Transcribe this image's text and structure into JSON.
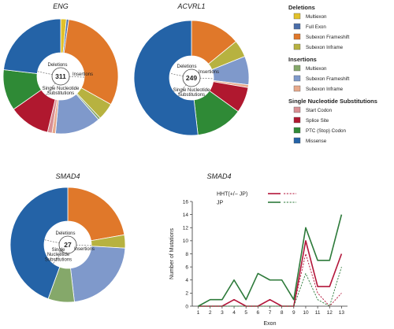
{
  "colors": {
    "multiexon_del": "#e2c12a",
    "full_exon": "#4a6ea9",
    "subexon_frameshift_del": "#e0782a",
    "subexon_inframe_del": "#b7b240",
    "multiexon_ins": "#85a86a",
    "subexon_frameshift_ins": "#7f99cb",
    "subexon_inframe_ins": "#e7a98b",
    "start_codon": "#d98f93",
    "splice_site": "#b0182f",
    "ptc": "#2f8a36",
    "missense": "#2463a7",
    "hht_line": "#b3163a",
    "jp_line": "#2d7a3a"
  },
  "legend": {
    "groups": [
      {
        "header": "Deletions",
        "items": [
          {
            "label": "Multiexon",
            "color_key": "multiexon_del"
          },
          {
            "label": "Full Exon",
            "color_key": "full_exon"
          },
          {
            "label": "Subexon Frameshift",
            "color_key": "subexon_frameshift_del"
          },
          {
            "label": "Subexon Inframe",
            "color_key": "subexon_inframe_del"
          }
        ]
      },
      {
        "header": "Insertions",
        "items": [
          {
            "label": "Multiexon",
            "color_key": "multiexon_ins"
          },
          {
            "label": "Subexon Frameshift",
            "color_key": "subexon_frameshift_ins"
          },
          {
            "label": "Subexon Inframe",
            "color_key": "subexon_inframe_ins"
          }
        ]
      },
      {
        "header": "Single Nucleotide Substitutions",
        "items": [
          {
            "label": "Start Codon",
            "color_key": "start_codon"
          },
          {
            "label": "Splice Site",
            "color_key": "splice_site"
          },
          {
            "label": "PTC (Stop) Codon",
            "color_key": "ptc"
          },
          {
            "label": "Missense",
            "color_key": "missense"
          }
        ]
      }
    ]
  },
  "chart_data": [
    {
      "type": "pie",
      "style": "donut",
      "title": "ENG",
      "total": "311",
      "inner_labels": {
        "deletions": "Deletions",
        "insertions": "Insertions",
        "substitutions": "Single Nucleotide Substitutions"
      },
      "slices": [
        {
          "category": "Multiexon (Deletion)",
          "value": 5,
          "color_key": "multiexon_del"
        },
        {
          "category": "Full Exon",
          "value": 2,
          "color_key": "full_exon"
        },
        {
          "category": "Subexon Frameshift (Deletion)",
          "value": 96,
          "color_key": "subexon_frameshift_del"
        },
        {
          "category": "Subexon Inframe (Deletion)",
          "value": 15,
          "color_key": "subexon_inframe_del"
        },
        {
          "category": "Multiexon (Insertion)",
          "value": 2,
          "color_key": "multiexon_ins"
        },
        {
          "category": "Subexon Frameshift (Insertion)",
          "value": 40,
          "color_key": "subexon_frameshift_ins"
        },
        {
          "category": "Subexon Inframe (Insertion)",
          "value": 3,
          "color_key": "subexon_inframe_ins"
        },
        {
          "category": "Start Codon",
          "value": 4,
          "color_key": "start_codon"
        },
        {
          "category": "Splice Site",
          "value": 36,
          "color_key": "splice_site"
        },
        {
          "category": "PTC (Stop) Codon",
          "value": 36,
          "color_key": "ptc"
        },
        {
          "category": "Missense",
          "value": 72,
          "color_key": "missense"
        }
      ]
    },
    {
      "type": "pie",
      "style": "donut",
      "title": "ACVRL1",
      "total": "249",
      "inner_labels": {
        "deletions": "Deletions",
        "insertions": "Insertions",
        "substitutions": "Single Nucleotide Substitutions"
      },
      "slices": [
        {
          "category": "Subexon Frameshift (Deletion)",
          "value": 35,
          "color_key": "subexon_frameshift_del"
        },
        {
          "category": "Subexon Inframe (Deletion)",
          "value": 12,
          "color_key": "subexon_inframe_del"
        },
        {
          "category": "Subexon Frameshift (Insertion)",
          "value": 20,
          "color_key": "subexon_frameshift_ins"
        },
        {
          "category": "Subexon Inframe (Insertion)",
          "value": 2,
          "color_key": "subexon_inframe_ins"
        },
        {
          "category": "Splice Site",
          "value": 18,
          "color_key": "splice_site"
        },
        {
          "category": "PTC (Stop) Codon",
          "value": 33,
          "color_key": "ptc"
        },
        {
          "category": "Missense",
          "value": 129,
          "color_key": "missense"
        }
      ]
    },
    {
      "type": "pie",
      "style": "donut",
      "title": "SMAD4",
      "total": "27",
      "inner_labels": {
        "deletions": "Deletions",
        "insertions": "Insertions",
        "substitutions": "Single Nucleotide Substitutions"
      },
      "slices": [
        {
          "category": "Subexon Frameshift (Deletion)",
          "value": 6,
          "color_key": "subexon_frameshift_del"
        },
        {
          "category": "Subexon Inframe (Deletion)",
          "value": 1,
          "color_key": "subexon_inframe_del"
        },
        {
          "category": "Subexon Frameshift (Insertion)",
          "value": 6,
          "color_key": "subexon_frameshift_ins"
        },
        {
          "category": "Multiexon (Insertion)",
          "value": 2,
          "color_key": "multiexon_ins"
        },
        {
          "category": "Missense",
          "value": 12,
          "color_key": "missense"
        }
      ]
    },
    {
      "type": "line",
      "title": "SMAD4",
      "xlabel": "Exon",
      "ylabel": "Number of Mutations",
      "x": [
        1,
        2,
        3,
        4,
        5,
        6,
        7,
        8,
        9,
        10,
        11,
        12,
        13
      ],
      "xlim": [
        0.5,
        13.5
      ],
      "ylim": [
        0,
        16
      ],
      "yticks": [
        0,
        2,
        4,
        6,
        8,
        10,
        12,
        14,
        16
      ],
      "grid": false,
      "legend_position": "top-left",
      "series": [
        {
          "name": "HHT(+/− JP)",
          "color_key": "hht_line",
          "dash": false,
          "values": [
            0,
            0,
            0,
            1,
            0,
            0,
            1,
            0,
            0,
            10,
            3,
            3,
            8
          ]
        },
        {
          "name": "HHT(+/− JP)",
          "legend_hidden": true,
          "color_key": "hht_line",
          "dash": true,
          "values": [
            0,
            0,
            0,
            0,
            0,
            0,
            0,
            0,
            0,
            8,
            2,
            0,
            2
          ]
        },
        {
          "name": "JP",
          "color_key": "jp_line",
          "dash": false,
          "values": [
            0,
            1,
            1,
            4,
            1,
            5,
            4,
            4,
            1,
            12,
            7,
            7,
            14
          ]
        },
        {
          "name": "JP",
          "legend_hidden": true,
          "color_key": "jp_line",
          "dash": true,
          "values": [
            0,
            0,
            0,
            0,
            0,
            0,
            0,
            0,
            0,
            5,
            1,
            0,
            6
          ]
        }
      ]
    }
  ]
}
